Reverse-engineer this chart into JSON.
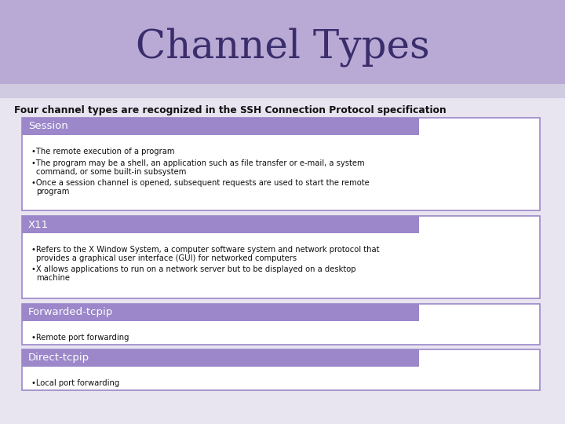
{
  "title": "Channel Types",
  "title_color": "#3a2d6b",
  "header_bg_top": "#b8aad4",
  "header_bg_bottom": "#c8bfe0",
  "slide_bg": "#e8e4f0",
  "subtitle": "Four channel types are recognized in the SSH Connection Protocol specification",
  "subtitle_color": "#111111",
  "section_header_bg": "#9b87c9",
  "section_header_text": "#ffffff",
  "section_border_color": "#9b87c9",
  "section_box_bg": "#ffffff",
  "bullet_color": "#111111",
  "sections": [
    {
      "title": "Session",
      "bullets": [
        "The remote execution of a program",
        "The program may be a shell, an application such as file transfer or e-mail, a system\n  command, or some built-in subsystem",
        "Once a session channel is opened, subsequent requests are used to start the remote\n  program"
      ]
    },
    {
      "title": "X11",
      "bullets": [
        "Refers to the X Window System, a computer software system and network protocol that\n  provides a graphical user interface (GUI) for networked computers",
        "X allows applications to run on a network server but to be displayed on a desktop\n  machine"
      ]
    },
    {
      "title": "Forwarded-tcpip",
      "bullets": [
        "Remote port forwarding"
      ]
    },
    {
      "title": "Direct-tcpip",
      "bullets": [
        "Local port forwarding"
      ]
    }
  ]
}
